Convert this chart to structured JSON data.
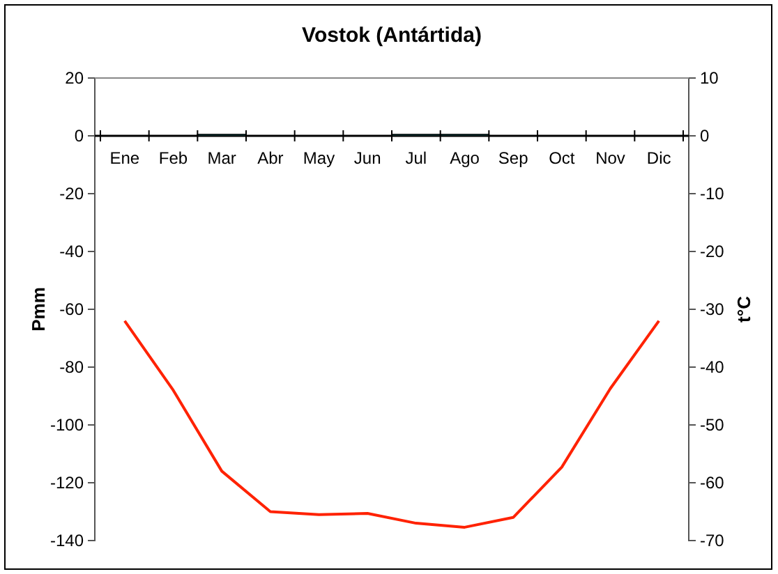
{
  "chart_data": {
    "type": "bar",
    "title": "Vostok (Antártida)",
    "ylabel": "Pmm",
    "y2label": "t°C",
    "categories": [
      "Ene",
      "Feb",
      "Mar",
      "Abr",
      "May",
      "Jun",
      "Jul",
      "Ago",
      "Sep",
      "Oct",
      "Nov",
      "Dic"
    ],
    "series": [
      {
        "color": "#339999",
        "values": [
          0,
          0,
          0.5,
          0,
          0,
          0,
          0.5,
          0.5,
          0,
          0,
          0,
          0
        ]
      },
      {
        "type": "line",
        "axis": "y2",
        "color": "#ff2200",
        "values": [
          -32,
          -44,
          -58,
          -65,
          -65.5,
          -65.3,
          -67,
          -67.7,
          -66,
          -57.3,
          -43.7,
          -32
        ]
      }
    ],
    "ylim": [
      -140,
      20
    ],
    "yticks": [
      -140,
      -120,
      -100,
      -80,
      -60,
      -40,
      -20,
      0,
      20
    ],
    "y2lim": [
      -70,
      10
    ],
    "y2ticks": [
      -70,
      -60,
      -50,
      -40,
      -30,
      -20,
      -10,
      0,
      10
    ],
    "grid": false,
    "marker": "none",
    "line_style": "solid"
  }
}
